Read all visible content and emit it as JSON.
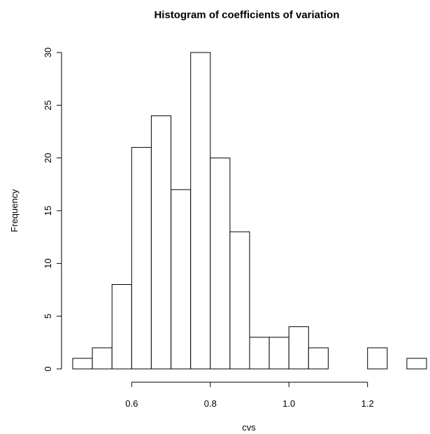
{
  "chart_data": {
    "type": "bar",
    "title": "Histogram of coefficients of variation",
    "xlabel": "cvs",
    "ylabel": "Frequency",
    "bin_width": 0.05,
    "bins": [
      {
        "start": 0.45,
        "end": 0.5,
        "count": 1
      },
      {
        "start": 0.5,
        "end": 0.55,
        "count": 2
      },
      {
        "start": 0.55,
        "end": 0.6,
        "count": 8
      },
      {
        "start": 0.6,
        "end": 0.65,
        "count": 21
      },
      {
        "start": 0.65,
        "end": 0.7,
        "count": 24
      },
      {
        "start": 0.7,
        "end": 0.75,
        "count": 17
      },
      {
        "start": 0.75,
        "end": 0.8,
        "count": 30
      },
      {
        "start": 0.8,
        "end": 0.85,
        "count": 20
      },
      {
        "start": 0.85,
        "end": 0.9,
        "count": 13
      },
      {
        "start": 0.9,
        "end": 0.95,
        "count": 3
      },
      {
        "start": 0.95,
        "end": 1.0,
        "count": 3
      },
      {
        "start": 1.0,
        "end": 1.05,
        "count": 4
      },
      {
        "start": 1.05,
        "end": 1.1,
        "count": 2
      },
      {
        "start": 1.1,
        "end": 1.15,
        "count": 0
      },
      {
        "start": 1.15,
        "end": 1.2,
        "count": 0
      },
      {
        "start": 1.2,
        "end": 1.25,
        "count": 2
      },
      {
        "start": 1.25,
        "end": 1.3,
        "count": 0
      },
      {
        "start": 1.3,
        "end": 1.35,
        "count": 1
      }
    ],
    "xlim": [
      0.45,
      1.35
    ],
    "ylim": [
      0,
      30
    ],
    "x_ticks": [
      {
        "value": 0.6,
        "label": "0.6"
      },
      {
        "value": 0.8,
        "label": "0.8"
      },
      {
        "value": 1.0,
        "label": "1.0"
      },
      {
        "value": 1.2,
        "label": "1.2"
      }
    ],
    "y_ticks": [
      {
        "value": 0,
        "label": "0"
      },
      {
        "value": 5,
        "label": "5"
      },
      {
        "value": 10,
        "label": "10"
      },
      {
        "value": 15,
        "label": "15"
      },
      {
        "value": 20,
        "label": "20"
      },
      {
        "value": 25,
        "label": "25"
      },
      {
        "value": 30,
        "label": "30"
      }
    ],
    "grid": false,
    "colors": {
      "bar_fill": "#ffffff",
      "bar_stroke": "#000000"
    }
  }
}
